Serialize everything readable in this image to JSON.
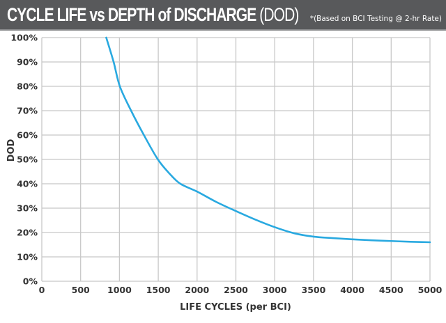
{
  "header": {
    "title_bold": "CYCLE LIFE vs DEPTH of DISCHARGE",
    "title_light": "(DOD)",
    "note": "*(Based on BCI Testing @ 2-hr Rate)"
  },
  "chart_data": {
    "type": "line",
    "title": "CYCLE LIFE vs DEPTH of DISCHARGE (DOD)",
    "subtitle": "*(Based on BCI Testing @ 2-hr Rate)",
    "xlabel": "LIFE CYCLES (per BCI)",
    "ylabel": "DOD",
    "xlim": [
      0,
      5000
    ],
    "ylim": [
      0,
      100
    ],
    "x_ticks": [
      0,
      500,
      1000,
      1500,
      2000,
      2500,
      3000,
      3500,
      4000,
      4500,
      5000
    ],
    "x_tick_labels": [
      "0",
      "500",
      "1000",
      "1500",
      "2000",
      "2500",
      "3000",
      "3500",
      "4000",
      "4500",
      "5000"
    ],
    "y_ticks": [
      0,
      10,
      20,
      30,
      40,
      50,
      60,
      70,
      80,
      90,
      100
    ],
    "y_tick_labels": [
      "0%",
      "10%",
      "20%",
      "30%",
      "40%",
      "50%",
      "60%",
      "70%",
      "80%",
      "90%",
      "100%"
    ],
    "grid": true,
    "legend": "none",
    "series": [
      {
        "name": "DOD",
        "color": "#29a9e0",
        "x": [
          830,
          925,
          1005,
          1150,
          1315,
          1495,
          1650,
          1785,
          2000,
          2250,
          2500,
          2750,
          3000,
          3250,
          3500,
          3750,
          4000,
          4250,
          4500,
          4750,
          5000
        ],
        "y": [
          100,
          90,
          80,
          70,
          60,
          50,
          44,
          40,
          36.8,
          32.5,
          28.8,
          25.3,
          22.2,
          19.7,
          18.3,
          17.7,
          17.2,
          16.8,
          16.5,
          16.2,
          16.0
        ]
      }
    ]
  }
}
